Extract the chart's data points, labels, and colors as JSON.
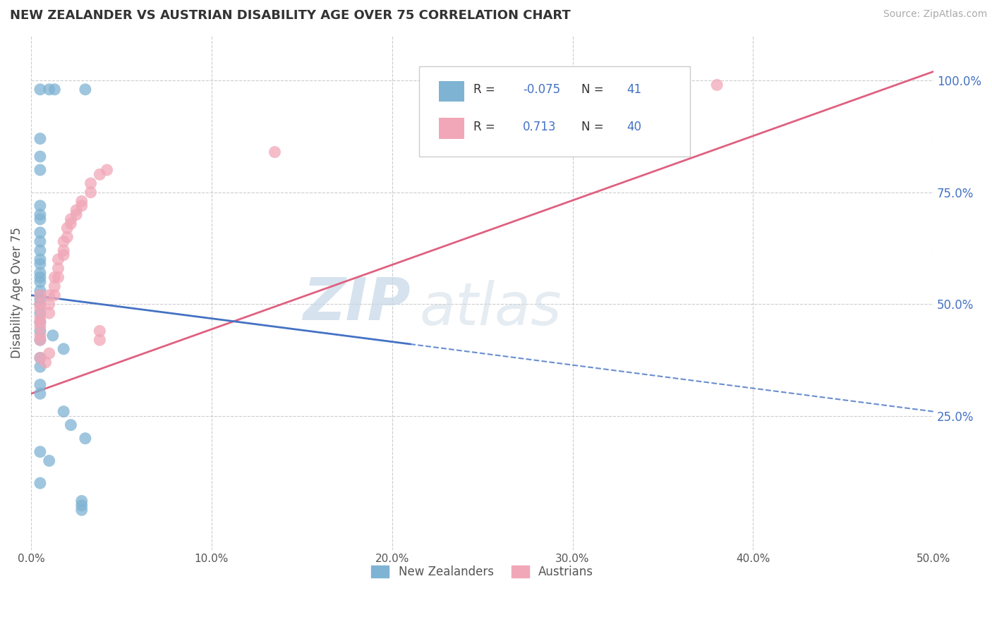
{
  "title": "NEW ZEALANDER VS AUSTRIAN DISABILITY AGE OVER 75 CORRELATION CHART",
  "source": "Source: ZipAtlas.com",
  "ylabel": "Disability Age Over 75",
  "xlim": [
    0.0,
    0.5
  ],
  "ylim": [
    -0.05,
    1.1
  ],
  "xticks": [
    0.0,
    0.1,
    0.2,
    0.3,
    0.4,
    0.5
  ],
  "xticklabels": [
    "0.0%",
    "10.0%",
    "20.0%",
    "30.0%",
    "40.0%",
    "50.0%"
  ],
  "yticks_right": [
    0.25,
    0.5,
    0.75,
    1.0
  ],
  "yticklabels_right": [
    "25.0%",
    "50.0%",
    "75.0%",
    "100.0%"
  ],
  "nz_color": "#7fb3d3",
  "au_color": "#f1a7b8",
  "nz_line_color": "#4472c4",
  "au_line_color": "#e06080",
  "nz_R": -0.075,
  "nz_N": 41,
  "au_R": 0.713,
  "au_N": 40,
  "nz_scatter": [
    [
      0.005,
      0.98
    ],
    [
      0.01,
      0.98
    ],
    [
      0.013,
      0.98
    ],
    [
      0.03,
      0.98
    ],
    [
      0.005,
      0.87
    ],
    [
      0.005,
      0.83
    ],
    [
      0.005,
      0.8
    ],
    [
      0.005,
      0.72
    ],
    [
      0.005,
      0.7
    ],
    [
      0.005,
      0.69
    ],
    [
      0.005,
      0.66
    ],
    [
      0.005,
      0.64
    ],
    [
      0.005,
      0.62
    ],
    [
      0.005,
      0.6
    ],
    [
      0.005,
      0.59
    ],
    [
      0.005,
      0.57
    ],
    [
      0.005,
      0.56
    ],
    [
      0.005,
      0.55
    ],
    [
      0.005,
      0.53
    ],
    [
      0.005,
      0.52
    ],
    [
      0.005,
      0.51
    ],
    [
      0.005,
      0.5
    ],
    [
      0.005,
      0.48
    ],
    [
      0.005,
      0.46
    ],
    [
      0.005,
      0.44
    ],
    [
      0.005,
      0.42
    ],
    [
      0.005,
      0.38
    ],
    [
      0.005,
      0.36
    ],
    [
      0.012,
      0.43
    ],
    [
      0.018,
      0.4
    ],
    [
      0.005,
      0.32
    ],
    [
      0.005,
      0.3
    ],
    [
      0.018,
      0.26
    ],
    [
      0.022,
      0.23
    ],
    [
      0.03,
      0.2
    ],
    [
      0.005,
      0.17
    ],
    [
      0.01,
      0.15
    ],
    [
      0.005,
      0.1
    ],
    [
      0.028,
      0.06
    ],
    [
      0.028,
      0.05
    ],
    [
      0.028,
      0.04
    ]
  ],
  "au_scatter": [
    [
      0.005,
      0.52
    ],
    [
      0.005,
      0.5
    ],
    [
      0.005,
      0.49
    ],
    [
      0.005,
      0.47
    ],
    [
      0.005,
      0.46
    ],
    [
      0.005,
      0.45
    ],
    [
      0.005,
      0.43
    ],
    [
      0.005,
      0.42
    ],
    [
      0.01,
      0.52
    ],
    [
      0.01,
      0.5
    ],
    [
      0.01,
      0.48
    ],
    [
      0.013,
      0.56
    ],
    [
      0.013,
      0.54
    ],
    [
      0.013,
      0.52
    ],
    [
      0.015,
      0.6
    ],
    [
      0.015,
      0.58
    ],
    [
      0.015,
      0.56
    ],
    [
      0.018,
      0.64
    ],
    [
      0.018,
      0.62
    ],
    [
      0.018,
      0.61
    ],
    [
      0.02,
      0.67
    ],
    [
      0.02,
      0.65
    ],
    [
      0.022,
      0.69
    ],
    [
      0.022,
      0.68
    ],
    [
      0.025,
      0.71
    ],
    [
      0.025,
      0.7
    ],
    [
      0.028,
      0.73
    ],
    [
      0.028,
      0.72
    ],
    [
      0.033,
      0.77
    ],
    [
      0.033,
      0.75
    ],
    [
      0.038,
      0.79
    ],
    [
      0.042,
      0.8
    ],
    [
      0.135,
      0.84
    ],
    [
      0.28,
      0.86
    ],
    [
      0.38,
      0.99
    ],
    [
      0.005,
      0.38
    ],
    [
      0.008,
      0.37
    ],
    [
      0.01,
      0.39
    ],
    [
      0.038,
      0.44
    ],
    [
      0.038,
      0.42
    ]
  ],
  "legend_nz_label": "New Zealanders",
  "legend_au_label": "Austrians",
  "watermark_zip": "ZIP",
  "watermark_atlas": "atlas",
  "background_color": "#ffffff",
  "grid_color": "#cccccc"
}
